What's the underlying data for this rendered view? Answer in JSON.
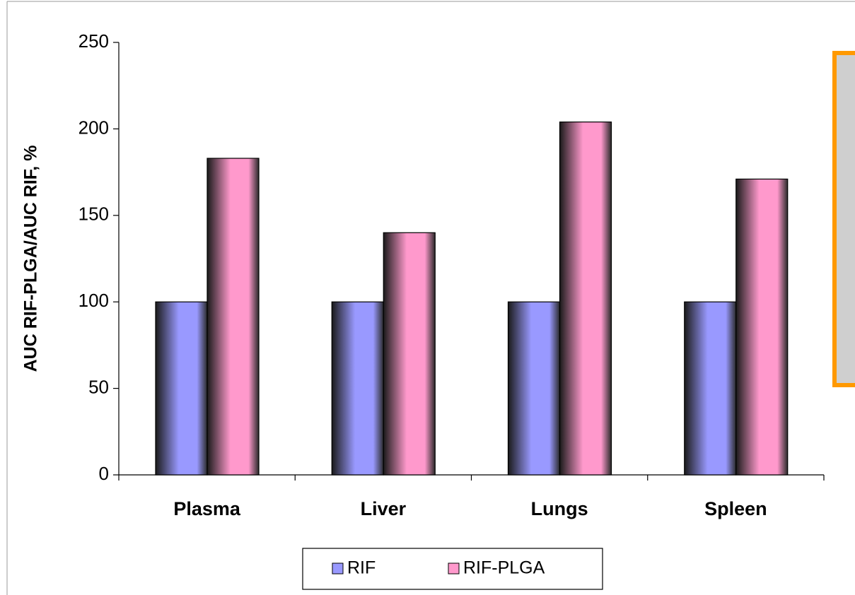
{
  "chart_data": {
    "type": "bar",
    "y_label": "AUC RIF-PLGA/AUC RIF, %",
    "categories": [
      "Plasma",
      "Liver",
      "Lungs",
      "Spleen"
    ],
    "series": [
      {
        "name": "RIF",
        "color": "#9999ff",
        "values": [
          100,
          100,
          100,
          100
        ]
      },
      {
        "name": "RIF-PLGA",
        "color": "#ff99cc",
        "values": [
          183,
          140,
          204,
          171
        ]
      }
    ],
    "ylim": [
      0,
      250
    ],
    "yticks": [
      0,
      50,
      100,
      150,
      200,
      250
    ],
    "grid": false,
    "legend": "bottom"
  }
}
